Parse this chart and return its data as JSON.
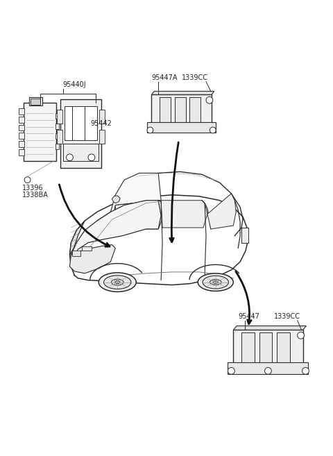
{
  "bg_color": "#ffffff",
  "line_color": "#2a2a2a",
  "arrow_color": "#111111",
  "label_color": "#222222",
  "fig_width": 4.8,
  "fig_height": 6.57,
  "dpi": 100,
  "labels": {
    "part1_main": "95440J",
    "part1_sub": "95442",
    "part1_bolt1": "13396",
    "part1_bolt2": "1338BA",
    "part2_main": "95447A",
    "part2_bolt": "1339CC",
    "part3_main": "95447",
    "part3_bolt": "1339CC"
  },
  "font_size": 7.0
}
